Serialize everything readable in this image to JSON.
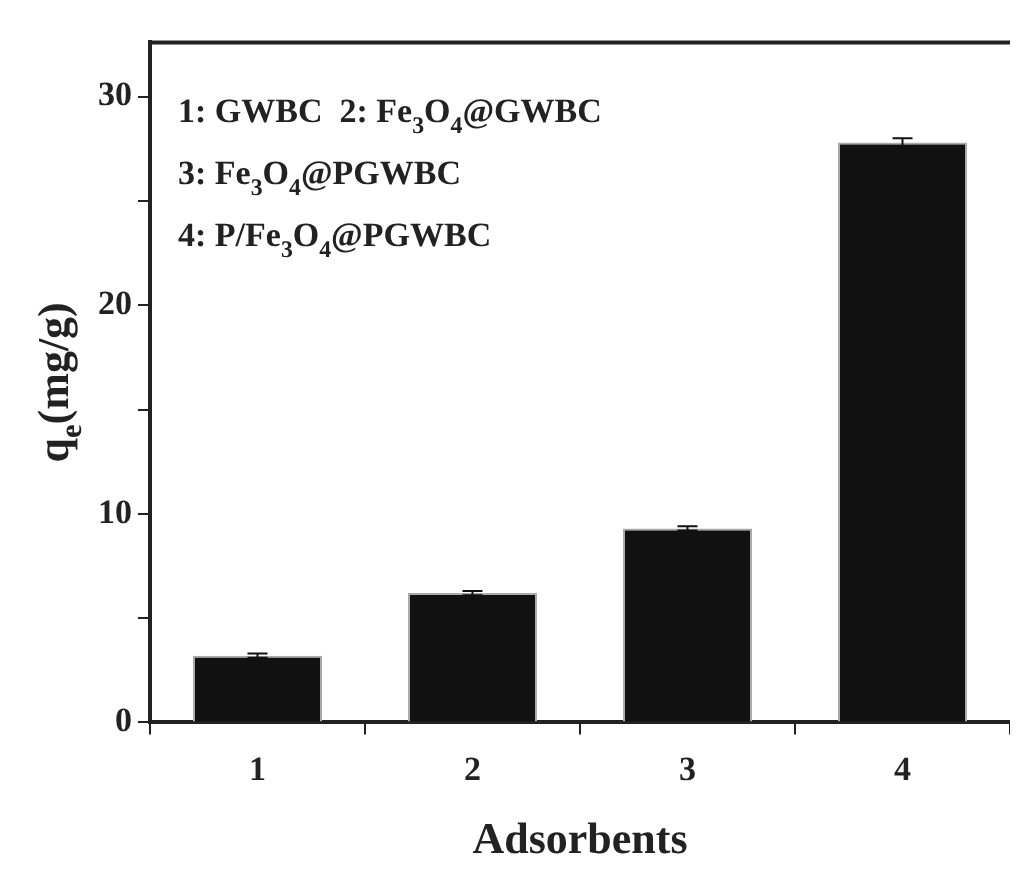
{
  "chart_data": {
    "type": "bar",
    "categories": [
      "1",
      "2",
      "3",
      "4"
    ],
    "values": [
      3.2,
      6.2,
      9.3,
      27.8
    ],
    "errors": [
      0.1,
      0.1,
      0.1,
      0.2
    ],
    "color": "#111111",
    "xlabel": "Adsorbents",
    "ylabel": "q$_{e}$(mg/g)",
    "ylim": [
      0,
      32.6
    ],
    "yticks": [
      0,
      {
        "value": 5,
        "label": null
      },
      10,
      {
        "value": 15,
        "label": null
      },
      20,
      {
        "value": 25,
        "label": null
      },
      30
    ],
    "annotations": [
      "1: GWBC  2: Fe$_{3}$O$_{4}$@GWBC",
      "3: Fe$_{3}$O$_{4}$@PGWBC",
      "4: P/Fe$_{3}$O$_{4}$@PGWBC"
    ],
    "grid": false,
    "legend": false
  }
}
